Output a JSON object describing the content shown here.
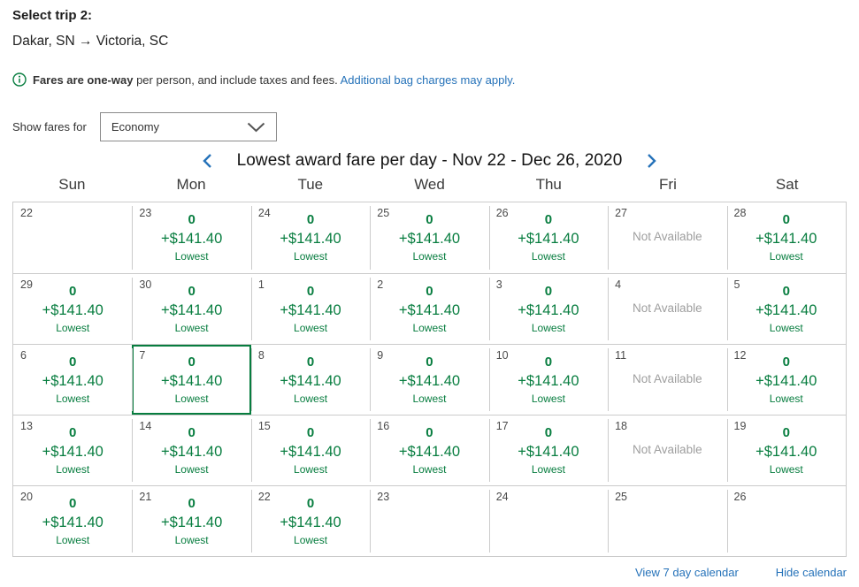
{
  "header": {
    "title": "Select trip 2:",
    "route": "Dakar, SN → Victoria, SC"
  },
  "notice": {
    "bold": "Fares are one-way",
    "text": "per person, and include taxes and fees.",
    "link": "Additional bag charges may apply."
  },
  "fare_class": {
    "label": "Show fares for",
    "selected": "Economy"
  },
  "calendar": {
    "title": "Lowest award fare per day - Nov 22 - Dec 26, 2020",
    "day_headers": [
      "Sun",
      "Mon",
      "Tue",
      "Wed",
      "Thu",
      "Fri",
      "Sat"
    ],
    "fare": {
      "miles": "0",
      "cash": "+$141.40",
      "label": "Lowest"
    },
    "not_available_label": "Not Available",
    "weeks": [
      [
        {
          "date": "22",
          "type": "empty"
        },
        {
          "date": "23",
          "type": "fare"
        },
        {
          "date": "24",
          "type": "fare"
        },
        {
          "date": "25",
          "type": "fare"
        },
        {
          "date": "26",
          "type": "fare"
        },
        {
          "date": "27",
          "type": "na"
        },
        {
          "date": "28",
          "type": "fare"
        }
      ],
      [
        {
          "date": "29",
          "type": "fare"
        },
        {
          "date": "30",
          "type": "fare"
        },
        {
          "date": "1",
          "type": "fare"
        },
        {
          "date": "2",
          "type": "fare"
        },
        {
          "date": "3",
          "type": "fare"
        },
        {
          "date": "4",
          "type": "na"
        },
        {
          "date": "5",
          "type": "fare"
        }
      ],
      [
        {
          "date": "6",
          "type": "fare"
        },
        {
          "date": "7",
          "type": "fare",
          "selected": true
        },
        {
          "date": "8",
          "type": "fare"
        },
        {
          "date": "9",
          "type": "fare"
        },
        {
          "date": "10",
          "type": "fare"
        },
        {
          "date": "11",
          "type": "na"
        },
        {
          "date": "12",
          "type": "fare"
        }
      ],
      [
        {
          "date": "13",
          "type": "fare"
        },
        {
          "date": "14",
          "type": "fare"
        },
        {
          "date": "15",
          "type": "fare"
        },
        {
          "date": "16",
          "type": "fare"
        },
        {
          "date": "17",
          "type": "fare"
        },
        {
          "date": "18",
          "type": "na"
        },
        {
          "date": "19",
          "type": "fare"
        }
      ],
      [
        {
          "date": "20",
          "type": "fare"
        },
        {
          "date": "21",
          "type": "fare"
        },
        {
          "date": "22",
          "type": "fare"
        },
        {
          "date": "23",
          "type": "empty"
        },
        {
          "date": "24",
          "type": "empty"
        },
        {
          "date": "25",
          "type": "empty"
        },
        {
          "date": "26",
          "type": "empty"
        }
      ]
    ]
  },
  "footer": {
    "view7": "View 7 day calendar",
    "hide": "Hide calendar"
  },
  "colors": {
    "fare_green": "#077d3f",
    "link_blue": "#2572b9",
    "not_available_gray": "#9e9e9e",
    "grid_border": "#cbcbcb"
  }
}
